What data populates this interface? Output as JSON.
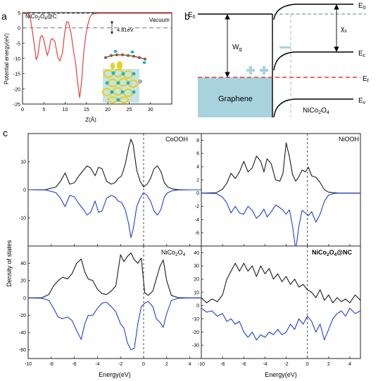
{
  "panel_labels": {
    "a": "a",
    "b": "b",
    "c": "c"
  },
  "colors": {
    "curve_red": "#e8413a",
    "up_dos": "#1a1a1a",
    "down_dos": "#1f3fd6",
    "graphene_fill": "#a8d3de",
    "fermi_dash": "#e53935",
    "axis": "#222222",
    "isosurface_yellow": "#e6d21f",
    "isosurface_cyan": "#19b6c7"
  },
  "chart_data": [
    {
      "id": "panel-a",
      "type": "line",
      "xlabel": "Z(Å)",
      "ylabel": "Potential energy(eV)",
      "xlim": [
        0,
        35
      ],
      "ylim": [
        -25,
        5
      ],
      "xticks": [
        0,
        5,
        10,
        15,
        20,
        25,
        30
      ],
      "yticks": [
        5,
        0,
        -5,
        -10,
        -15,
        -20,
        -25
      ],
      "legend": "NiCo2O4@C",
      "annotations": {
        "vacuum": "Vacuum",
        "gap": "4.81eV"
      },
      "vacuum_level": 4.81,
      "fermi_level": 0,
      "series": [
        {
          "x": [
            0,
            1.2,
            1.8,
            2.3,
            2.8,
            3.2,
            3.6,
            4.2,
            4.6,
            5.0,
            5.4,
            5.8,
            6.2,
            6.6,
            7.0,
            7.6,
            8.3,
            8.8,
            9.4,
            9.8,
            10.3,
            10.8,
            11.4,
            12.0,
            12.4,
            12.9,
            13.4,
            13.9,
            14.3,
            14.8,
            15.3,
            15.8,
            16.3,
            17.0,
            18.0,
            20,
            25,
            30,
            35
          ],
          "y": [
            4.8,
            4.7,
            3.5,
            -1.0,
            -6.0,
            -10.5,
            -9.0,
            -3.0,
            -2.5,
            -4.0,
            -6.5,
            -9.0,
            -7.5,
            -4.0,
            -3.5,
            -4.5,
            -9.8,
            -10.8,
            -8.0,
            -2.5,
            2.0,
            1.8,
            -2.0,
            -8.0,
            -11.0,
            -17.5,
            -23.0,
            -17.0,
            -9.0,
            -3.0,
            1.0,
            3.5,
            4.4,
            4.75,
            4.8,
            4.8,
            4.8,
            4.8,
            4.8
          ]
        }
      ]
    },
    {
      "id": "dos-coooh",
      "type": "line",
      "label": "CoOOH",
      "xlim": [
        -10,
        5
      ],
      "ylim": [
        -20,
        20
      ],
      "yticks": [
        -10,
        0,
        10
      ],
      "series": [
        {
          "name": "up",
          "x": [
            -10,
            -8.5,
            -7.6,
            -7.2,
            -6.8,
            -6.4,
            -6.0,
            -5.6,
            -5.2,
            -4.9,
            -4.6,
            -4.2,
            -3.9,
            -3.6,
            -3.2,
            -2.8,
            -2.5,
            -2.2,
            -1.9,
            -1.6,
            -1.3,
            -1.1,
            -0.9,
            -0.6,
            -0.3,
            0.0,
            0.3,
            0.6,
            0.9,
            1.2,
            1.5,
            1.8,
            2.1,
            2.5,
            3.0,
            4.0,
            5.0
          ],
          "y": [
            0,
            0.05,
            1,
            3,
            6,
            2,
            2.5,
            5,
            7,
            8.5,
            7.8,
            5,
            8,
            7.5,
            3,
            2,
            2.5,
            4,
            5,
            9,
            15,
            18,
            16,
            7,
            3,
            1,
            2,
            4,
            7.5,
            8.5,
            6.5,
            2.5,
            1,
            0.3,
            0.05,
            0,
            0
          ]
        },
        {
          "name": "down",
          "x": [
            -10,
            -8.5,
            -7.6,
            -7.2,
            -6.8,
            -6.4,
            -6.0,
            -5.6,
            -5.2,
            -4.9,
            -4.6,
            -4.2,
            -3.9,
            -3.6,
            -3.2,
            -2.8,
            -2.5,
            -2.2,
            -1.9,
            -1.6,
            -1.3,
            -1.1,
            -0.9,
            -0.6,
            -0.3,
            0.0,
            0.3,
            0.6,
            0.9,
            1.2,
            1.5,
            1.8,
            2.1,
            2.5,
            3.0,
            4.0,
            5.0
          ],
          "y": [
            0,
            -0.05,
            -1,
            -3,
            -6,
            -2,
            -2.5,
            -5,
            -7,
            -9,
            -8,
            -4,
            -8,
            -7.5,
            -3,
            -2,
            -2.5,
            -4,
            -4.5,
            -7,
            -12,
            -17,
            -14,
            -6,
            -3,
            -1,
            -2,
            -4,
            -7.5,
            -9,
            -7,
            -2.5,
            -1,
            -0.3,
            -0.05,
            0,
            0
          ]
        }
      ]
    },
    {
      "id": "dos-niooh",
      "type": "line",
      "label": "NiOOH",
      "xlim": [
        -10,
        5
      ],
      "ylim": [
        -8,
        9
      ],
      "yticks": [
        8,
        6,
        4,
        2,
        0,
        -2,
        -4,
        -6,
        -8
      ],
      "series": [
        {
          "name": "up",
          "x": [
            -10,
            -8.6,
            -8.0,
            -7.6,
            -7.2,
            -6.8,
            -6.4,
            -6.0,
            -5.6,
            -5.2,
            -4.8,
            -4.4,
            -4.1,
            -3.8,
            -3.4,
            -3.0,
            -2.6,
            -2.3,
            -2.0,
            -1.7,
            -1.4,
            -1.1,
            -0.8,
            -0.5,
            -0.2,
            0.1,
            0.4,
            0.8,
            1.2,
            1.6,
            2.0,
            2.5,
            3.0,
            4.0,
            5.0
          ],
          "y": [
            0,
            0.05,
            0.6,
            1.5,
            3,
            2.2,
            3.2,
            4.8,
            3.2,
            3.8,
            5.6,
            4.8,
            3.2,
            5.2,
            4.4,
            2.0,
            1.8,
            3.0,
            7.6,
            5.5,
            2.8,
            1.8,
            2.5,
            3.5,
            3.2,
            3.9,
            2.6,
            2.4,
            1.6,
            0.5,
            0.15,
            0.05,
            0,
            0,
            0
          ]
        },
        {
          "name": "down",
          "x": [
            -10,
            -8.6,
            -8.0,
            -7.6,
            -7.2,
            -6.8,
            -6.4,
            -6.0,
            -5.6,
            -5.2,
            -4.8,
            -4.4,
            -4.1,
            -3.8,
            -3.4,
            -3.0,
            -2.6,
            -2.3,
            -2.0,
            -1.7,
            -1.4,
            -1.1,
            -0.8,
            -0.5,
            -0.2,
            0.1,
            0.4,
            0.8,
            1.2,
            1.6,
            2.0,
            2.5,
            3.0,
            4.0,
            5.0
          ],
          "y": [
            0,
            -0.05,
            -0.6,
            -1.5,
            -3,
            -2,
            -3,
            -3.2,
            -2,
            -2.6,
            -3.8,
            -3.2,
            -2.4,
            -3.6,
            -2.8,
            -1.8,
            -2.2,
            -2.6,
            -3.2,
            -2.5,
            -5,
            -8.6,
            -5,
            -2.6,
            -3,
            -3.4,
            -2.8,
            -4.4,
            -3.2,
            -1.2,
            -0.3,
            -0.05,
            0,
            0,
            0
          ]
        }
      ]
    },
    {
      "id": "dos-nico2o4",
      "type": "line",
      "label": "NiCo2O4",
      "xlim": [
        -10,
        5
      ],
      "ylim": [
        -70,
        60
      ],
      "yticks": [
        60,
        40,
        20,
        0,
        -20,
        -40,
        -60
      ],
      "series": [
        {
          "name": "up",
          "x": [
            -10,
            -8.8,
            -8.2,
            -7.8,
            -7.4,
            -7.0,
            -6.6,
            -6.2,
            -5.8,
            -5.4,
            -5.1,
            -4.8,
            -4.4,
            -4.0,
            -3.6,
            -3.2,
            -2.8,
            -2.4,
            -2.0,
            -1.7,
            -1.4,
            -1.1,
            -0.8,
            -0.5,
            -0.2,
            0.1,
            0.4,
            0.8,
            1.1,
            1.4,
            1.7,
            2.0,
            2.4,
            3.0,
            4.0,
            5.0
          ],
          "y": [
            0,
            0.3,
            4,
            14,
            20,
            24,
            22,
            28,
            40,
            45,
            30,
            22,
            20,
            10,
            5,
            4,
            8,
            14,
            50,
            42,
            48,
            52,
            44,
            40,
            46,
            6,
            3,
            8,
            22,
            36,
            44,
            20,
            3,
            0.3,
            0,
            0
          ]
        },
        {
          "name": "down",
          "x": [
            -10,
            -8.8,
            -8.2,
            -7.8,
            -7.4,
            -7.0,
            -6.6,
            -6.2,
            -5.8,
            -5.4,
            -5.1,
            -4.8,
            -4.4,
            -4.0,
            -3.6,
            -3.2,
            -2.8,
            -2.4,
            -2.0,
            -1.7,
            -1.4,
            -1.1,
            -0.8,
            -0.5,
            -0.2,
            0.1,
            0.4,
            0.8,
            1.1,
            1.4,
            1.7,
            2.0,
            2.4,
            3.0,
            4.0,
            5.0
          ],
          "y": [
            0,
            -0.3,
            -3,
            -12,
            -22,
            -24,
            -22,
            -26,
            -38,
            -48,
            -30,
            -20,
            -20,
            -12,
            -6,
            -5,
            -10,
            -16,
            -30,
            -35,
            -52,
            -60,
            -58,
            -30,
            -10,
            -6,
            -4,
            -10,
            -24,
            -28,
            -34,
            -18,
            -3,
            -0.3,
            0,
            0
          ]
        }
      ]
    },
    {
      "id": "dos-nico2o4-nc",
      "type": "line",
      "label": "NiCo2O4@NC",
      "xlim": [
        -10,
        5
      ],
      "ylim": [
        -40,
        45
      ],
      "yticks": [
        40,
        30,
        20,
        10,
        0,
        -10,
        -20,
        -30,
        -40
      ],
      "series": [
        {
          "name": "up",
          "x": [
            -10,
            -9.5,
            -9.0,
            -8.5,
            -8.0,
            -7.6,
            -7.2,
            -6.8,
            -6.4,
            -6.0,
            -5.6,
            -5.2,
            -4.8,
            -4.4,
            -4.0,
            -3.6,
            -3.2,
            -2.8,
            -2.4,
            -2.0,
            -1.6,
            -1.2,
            -0.8,
            -0.4,
            0.0,
            0.4,
            0.8,
            1.2,
            1.6,
            2.0,
            2.4,
            2.8,
            3.2,
            3.6,
            4.0,
            4.5,
            5.0
          ],
          "y": [
            6,
            2,
            5,
            3,
            8,
            20,
            26,
            32,
            26,
            32,
            26,
            30,
            22,
            30,
            24,
            28,
            20,
            24,
            18,
            22,
            16,
            20,
            14,
            16,
            12,
            10,
            6,
            12,
            4,
            8,
            2,
            6,
            3,
            5,
            2,
            8,
            4
          ]
        },
        {
          "name": "down",
          "x": [
            -10,
            -9.5,
            -9.0,
            -8.5,
            -8.0,
            -7.6,
            -7.2,
            -6.8,
            -6.4,
            -6.0,
            -5.6,
            -5.2,
            -4.8,
            -4.4,
            -4.0,
            -3.6,
            -3.2,
            -2.8,
            -2.4,
            -2.0,
            -1.6,
            -1.2,
            -0.8,
            -0.4,
            0.0,
            0.4,
            0.8,
            1.2,
            1.6,
            2.0,
            2.4,
            2.8,
            3.2,
            3.6,
            4.0,
            4.5,
            5.0
          ],
          "y": [
            -2,
            -5,
            -4,
            -8,
            -6,
            -12,
            -10,
            -14,
            -12,
            -20,
            -24,
            -20,
            -26,
            -22,
            -24,
            -20,
            -22,
            -18,
            -22,
            -20,
            -14,
            -18,
            -10,
            -14,
            -8,
            -12,
            -20,
            -14,
            -26,
            -18,
            -10,
            -6,
            -4,
            -8,
            -2,
            -6,
            -4
          ]
        }
      ]
    }
  ],
  "dos_shared": {
    "ylabel": "Density of states",
    "xlabel": "Energy(eV)",
    "xticks": [
      -10,
      -8,
      -6,
      -4,
      -2,
      0,
      2,
      4
    ]
  },
  "band_diagram": {
    "labels": {
      "e0_left": "E0",
      "e0_right": "E0",
      "wg": "Wg",
      "chi": "χs",
      "ec": "Ec",
      "ef": "Ef",
      "ev": "Ev",
      "graphene": "Graphene",
      "material": "NiCo2O4"
    }
  }
}
